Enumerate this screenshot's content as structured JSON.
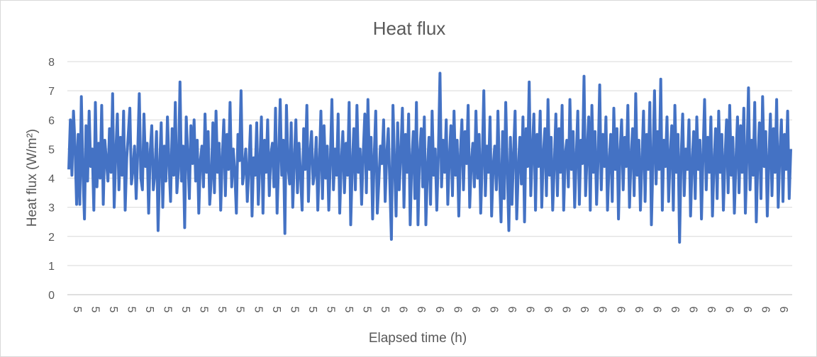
{
  "chart_data": {
    "type": "line",
    "title": "Heat flux",
    "xlabel": "Elapsed time (h)",
    "ylabel": "Heat flux (W/m²)",
    "ylim": [
      0,
      8
    ],
    "yticks": [
      0,
      1,
      2,
      3,
      4,
      5,
      6,
      7,
      8
    ],
    "xtick_labels": [
      "5",
      "5",
      "5",
      "5",
      "5",
      "5",
      "5",
      "5",
      "5",
      "5",
      "5",
      "5",
      "5",
      "5",
      "5",
      "5",
      "5",
      "5",
      "6",
      "6",
      "6",
      "6",
      "6",
      "6",
      "6",
      "6",
      "6",
      "6",
      "6",
      "6",
      "6",
      "6",
      "6",
      "6",
      "6",
      "6",
      "6",
      "6",
      "6",
      "6"
    ],
    "grid": true,
    "legend": "none",
    "colors": {
      "series": "#4472c4",
      "grid": "#d9d9d9",
      "axis": "#bfbfbf",
      "text": "#595959"
    },
    "series": [
      {
        "values": [
          4.3,
          6.0,
          4.1,
          6.3,
          5.1,
          3.1,
          5.5,
          3.1,
          6.8,
          4.2,
          2.6,
          5.8,
          3.9,
          6.3,
          4.4,
          5.0,
          2.9,
          6.6,
          3.7,
          5.2,
          4.0,
          6.5,
          3.1,
          5.3,
          4.6,
          3.9,
          5.7,
          4.2,
          6.9,
          3.0,
          4.8,
          6.2,
          3.6,
          5.4,
          4.1,
          6.3,
          2.9,
          4.7,
          5.5,
          6.4,
          3.8,
          4.3,
          5.1,
          3.3,
          4.9,
          6.9,
          4.0,
          3.6,
          6.2,
          4.4,
          5.2,
          2.8,
          4.9,
          5.8,
          3.6,
          4.2,
          5.6,
          2.2,
          4.4,
          5.9,
          3.0,
          5.1,
          3.9,
          6.1,
          4.5,
          3.2,
          5.7,
          4.1,
          6.6,
          3.5,
          4.3,
          7.3,
          3.9,
          5.1,
          2.3,
          6.1,
          4.8,
          3.3,
          5.8,
          4.5,
          6.0,
          3.9,
          5.3,
          2.8,
          4.6,
          5.1,
          3.7,
          6.2,
          4.2,
          5.6,
          3.1,
          4.0,
          5.9,
          3.5,
          6.3,
          4.2,
          5.2,
          2.9,
          4.7,
          6.0,
          3.4,
          5.5,
          4.3,
          6.6,
          3.7,
          5.0,
          4.2,
          2.8,
          5.5,
          4.6,
          7.0,
          3.8,
          4.3,
          5.0,
          3.2,
          4.4,
          5.8,
          2.7,
          4.7,
          4.1,
          5.9,
          3.1,
          4.5,
          6.1,
          2.8,
          5.3,
          4.2,
          6.0,
          3.4,
          4.8,
          5.2,
          3.7,
          6.4,
          2.8,
          4.6,
          6.7,
          4.1,
          5.3,
          2.1,
          6.5,
          4.4,
          3.8,
          5.9,
          3.0,
          4.6,
          6.0,
          3.5,
          5.2,
          4.1,
          2.9,
          5.7,
          4.3,
          6.5,
          3.2,
          4.8,
          5.6,
          3.8,
          4.2,
          5.4,
          2.9,
          4.5,
          6.3,
          3.3,
          5.8,
          4.0,
          5.1,
          2.9,
          4.6,
          6.7,
          3.6,
          5.0,
          4.1,
          6.2,
          2.8,
          4.5,
          5.6,
          3.5,
          5.2,
          4.1,
          6.6,
          2.4,
          4.4,
          5.7,
          3.6,
          6.5,
          4.2,
          5.0,
          3.1,
          4.8,
          6.2,
          3.5,
          6.7,
          4.3,
          5.4,
          2.6,
          4.7,
          6.3,
          2.8,
          3.9,
          5.1,
          4.5,
          6.0,
          3.2,
          4.8,
          5.7,
          3.8,
          1.9,
          6.5,
          4.5,
          2.7,
          5.9,
          3.6,
          4.8,
          6.4,
          3.0,
          5.5,
          4.2,
          6.2,
          2.4,
          4.6,
          5.6,
          3.3,
          6.6,
          2.4,
          4.8,
          5.7,
          3.7,
          6.1,
          2.4,
          4.3,
          5.4,
          3.1,
          6.3,
          4.1,
          5.0,
          2.9,
          4.8,
          7.6,
          3.7,
          5.3,
          4.2,
          6.0,
          3.1,
          4.7,
          5.8,
          3.4,
          6.3,
          4.1,
          5.3,
          2.7,
          4.8,
          6.0,
          3.6,
          5.6,
          4.5,
          6.5,
          3.0,
          4.5,
          5.2,
          3.7,
          6.3,
          4.0,
          5.5,
          2.8,
          4.6,
          7.0,
          3.4,
          5.1,
          4.2,
          6.1,
          2.7,
          4.4,
          5.1,
          3.6,
          6.3,
          4.1,
          2.5,
          5.6,
          3.3,
          6.6,
          4.3,
          2.2,
          5.4,
          3.1,
          4.8,
          6.3,
          2.6,
          4.3,
          5.4,
          3.8,
          6.1,
          2.5,
          5.7,
          4.4,
          7.3,
          3.4,
          4.9,
          6.2,
          2.9,
          5.5,
          4.4,
          6.3,
          3.0,
          4.8,
          5.7,
          3.4,
          6.7,
          4.1,
          5.4,
          2.9,
          4.5,
          6.2,
          3.4,
          5.7,
          4.2,
          6.5,
          2.9,
          4.8,
          5.3,
          3.7,
          6.7,
          4.3,
          5.6,
          3.0,
          4.7,
          6.3,
          3.1,
          5.3,
          4.5,
          7.5,
          3.4,
          4.9,
          6.1,
          2.9,
          6.5,
          4.2,
          5.6,
          3.1,
          4.7,
          7.2,
          3.6,
          5.5,
          4.4,
          6.1,
          2.9,
          4.5,
          5.5,
          3.2,
          6.4,
          4.3,
          5.7,
          2.6,
          4.9,
          6.0,
          3.6,
          5.4,
          4.4,
          6.5,
          3.0,
          4.7,
          5.7,
          3.4,
          6.9,
          4.1,
          5.3,
          2.9,
          4.6,
          6.3,
          3.2,
          5.5,
          4.3,
          6.6,
          2.4,
          4.6,
          7.0,
          3.8,
          5.6,
          4.3,
          7.4,
          2.9,
          5.3,
          4.4,
          6.1,
          3.2,
          4.8,
          5.8,
          2.9,
          6.5,
          4.2,
          5.5,
          1.8,
          4.7,
          6.2,
          3.4,
          5.0,
          4.3,
          6.0,
          2.7,
          4.5,
          5.6,
          3.3,
          6.1,
          4.3,
          5.3,
          2.6,
          4.8,
          6.7,
          3.6,
          5.4,
          4.2,
          6.1,
          2.7,
          4.5,
          5.7,
          3.3,
          6.3,
          4.2,
          5.5,
          2.9,
          4.7,
          6.0,
          3.5,
          6.5,
          4.1,
          5.4,
          2.8,
          4.6,
          6.1,
          3.5,
          5.8,
          4.2,
          6.4,
          2.8,
          4.7,
          7.1,
          3.6,
          5.3,
          4.1,
          6.6,
          2.5,
          4.7,
          5.9,
          3.3,
          6.8,
          4.4,
          5.6,
          2.7,
          4.6,
          6.2,
          3.4,
          5.7,
          4.2,
          6.7,
          3.0,
          4.8,
          6.0,
          3.2,
          5.5,
          4.3,
          6.3,
          3.3,
          5.0
        ]
      }
    ]
  }
}
